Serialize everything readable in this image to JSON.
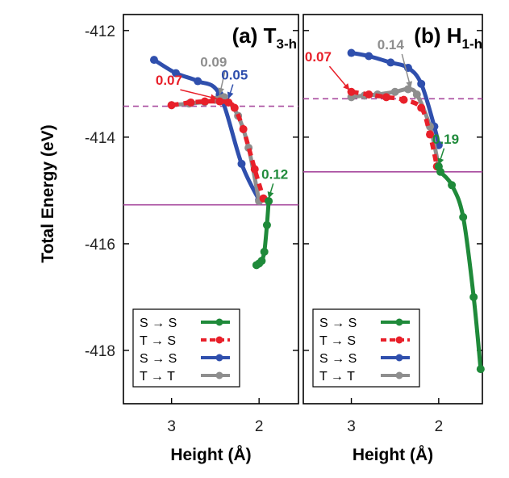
{
  "chart_data": {
    "type": "line",
    "shared": {
      "ylabel": "Total Energy (eV)",
      "ylim": [
        -419,
        -411.7
      ],
      "yticks": [
        "-412",
        "-414",
        "-416",
        "-418"
      ],
      "yticks_values": [
        -412,
        -414,
        -416,
        -418
      ]
    },
    "colors": {
      "green": "#1f8a3a",
      "red": "#e8202a",
      "blue": "#2f4fad",
      "gray": "#8e8e8e",
      "magenta": "#a84a9e"
    },
    "panels": [
      {
        "title_main": "(a) T",
        "title_sub": "3-h",
        "xlabel": "Height (Å)",
        "xlim": [
          3.55,
          1.55
        ],
        "xticks": [
          "3",
          "2"
        ],
        "xticks_values": [
          3,
          2
        ],
        "hlines": [
          {
            "y": -413.42,
            "style": "dashed",
            "color": "magenta"
          },
          {
            "y": -415.27,
            "style": "solid",
            "color": "magenta"
          }
        ],
        "series": [
          {
            "color": "blue",
            "dash": false,
            "x": [
              3.2,
              2.95,
              2.7,
              2.45,
              2.2,
              2.0
            ],
            "y": [
              -412.55,
              -412.8,
              -412.95,
              -413.2,
              -414.5,
              -415.18
            ]
          },
          {
            "color": "gray",
            "dash": false,
            "x": [
              3.0,
              2.8,
              2.62,
              2.5,
              2.4,
              2.24,
              2.12,
              2.0
            ],
            "y": [
              -413.4,
              -413.37,
              -413.34,
              -413.3,
              -413.25,
              -413.6,
              -414.2,
              -415.2
            ]
          },
          {
            "color": "red",
            "dash": true,
            "x": [
              3.0,
              2.78,
              2.62,
              2.45,
              2.35,
              2.28,
              2.18,
              2.05,
              1.95
            ],
            "y": [
              -413.4,
              -413.35,
              -413.33,
              -413.33,
              -413.35,
              -413.45,
              -413.85,
              -414.6,
              -415.15
            ]
          },
          {
            "color": "green",
            "dash": false,
            "x": [
              1.89,
              1.91,
              1.94,
              1.97,
              2.0,
              2.03
            ],
            "y": [
              -415.2,
              -415.65,
              -416.15,
              -416.32,
              -416.37,
              -416.4
            ]
          }
        ],
        "annotations": [
          {
            "text": "0.09",
            "color": "gray",
            "tx": 2.52,
            "ty": -412.68,
            "ax": 2.45,
            "ay": -413.2
          },
          {
            "text": "0.07",
            "color": "red",
            "tx": 3.03,
            "ty": -413.02,
            "ax": 2.48,
            "ay": -413.28
          },
          {
            "text": "0.05",
            "color": "blue",
            "tx": 2.28,
            "ty": -412.92,
            "ax": 2.35,
            "ay": -413.28
          },
          {
            "text": "0.12",
            "color": "green",
            "tx": 1.82,
            "ty": -414.78,
            "ax": 1.89,
            "ay": -415.15
          }
        ]
      },
      {
        "title_main": "(b) H",
        "title_sub": "1-h",
        "xlabel": "Height (Å)",
        "xlim": [
          3.55,
          1.5
        ],
        "xticks": [
          "3",
          "2"
        ],
        "xticks_values": [
          3,
          2
        ],
        "hlines": [
          {
            "y": -413.28,
            "style": "dashed",
            "color": "magenta"
          },
          {
            "y": -414.65,
            "style": "solid",
            "color": "magenta"
          }
        ],
        "series": [
          {
            "color": "blue",
            "dash": false,
            "x": [
              3.0,
              2.8,
              2.55,
              2.35,
              2.2,
              2.05,
              2.0
            ],
            "y": [
              -412.42,
              -412.48,
              -412.6,
              -412.7,
              -413.0,
              -413.8,
              -414.15
            ]
          },
          {
            "color": "gray",
            "dash": false,
            "x": [
              3.0,
              2.85,
              2.7,
              2.5,
              2.35,
              2.25,
              2.1,
              2.0
            ],
            "y": [
              -413.25,
              -413.22,
              -413.2,
              -413.15,
              -413.1,
              -413.2,
              -413.8,
              -414.55
            ]
          },
          {
            "color": "red",
            "dash": true,
            "x": [
              3.0,
              2.8,
              2.6,
              2.4,
              2.2,
              2.1,
              2.02
            ],
            "y": [
              -413.15,
              -413.2,
              -413.25,
              -413.3,
              -413.45,
              -413.95,
              -414.55
            ]
          },
          {
            "color": "green",
            "dash": false,
            "x": [
              2.0,
              1.98,
              1.85,
              1.72,
              1.6,
              1.52
            ],
            "y": [
              -414.55,
              -414.65,
              -414.9,
              -415.5,
              -417.0,
              -418.35
            ]
          }
        ],
        "annotations": [
          {
            "text": "0.14",
            "color": "gray",
            "tx": 2.55,
            "ty": -412.35,
            "ax": 2.32,
            "ay": -413.08
          },
          {
            "text": "0.07",
            "color": "red",
            "tx": 3.38,
            "ty": -412.58,
            "ax": 3.02,
            "ay": -413.12
          },
          {
            "text": "0.19",
            "color": "green",
            "tx": 1.92,
            "ty": -414.12,
            "ax": 2.0,
            "ay": -414.52
          }
        ]
      }
    ],
    "legend": {
      "position": "lower-left",
      "entries": [
        {
          "label": "S → S",
          "color": "green",
          "dash": false
        },
        {
          "label": "T → S",
          "color": "red",
          "dash": true
        },
        {
          "label": "S → S",
          "color": "blue",
          "dash": false
        },
        {
          "label": "T → T",
          "color": "gray",
          "dash": false
        }
      ]
    }
  }
}
